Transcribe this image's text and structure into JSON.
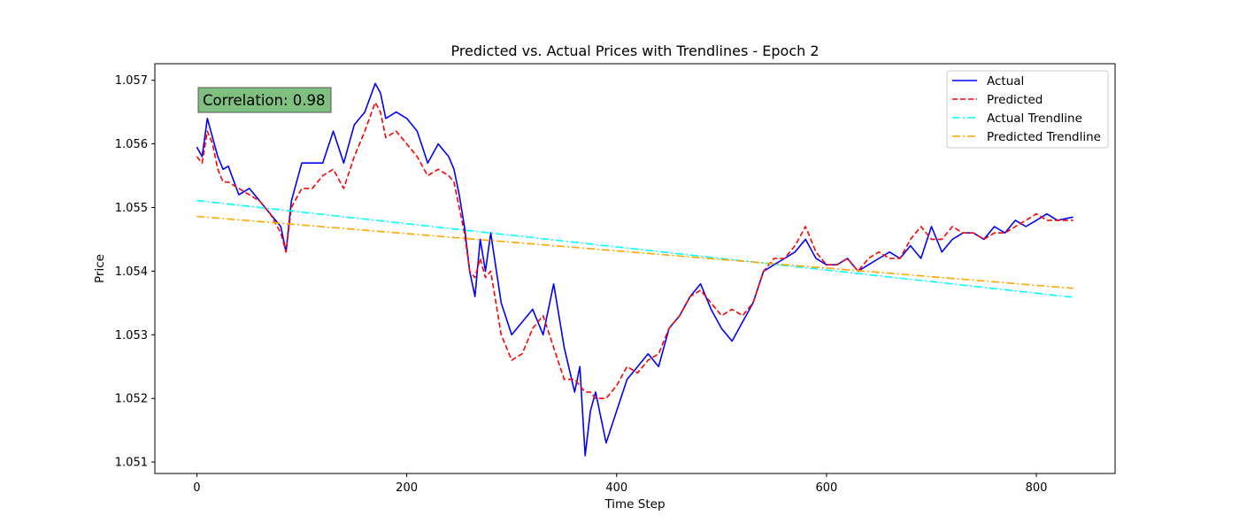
{
  "chart_data": {
    "type": "line",
    "title": "Predicted vs. Actual Prices with Trendlines - Epoch 2",
    "xlabel": "Time Step",
    "ylabel": "Price",
    "xlim": [
      -40,
      875
    ],
    "ylim": [
      1.05082,
      1.05726
    ],
    "xticks": [
      0,
      200,
      400,
      600,
      800
    ],
    "xtick_labels": [
      "0",
      "200",
      "400",
      "600",
      "800"
    ],
    "yticks": [
      1.051,
      1.052,
      1.053,
      1.054,
      1.055,
      1.056,
      1.057
    ],
    "ytick_labels": [
      "1.051",
      "1.052",
      "1.053",
      "1.054",
      "1.055",
      "1.056",
      "1.057"
    ],
    "grid": false,
    "legend_position": "top-right",
    "annotation": {
      "text": "Correlation: 0.98",
      "box_color": "#7fbf7f"
    },
    "series": [
      {
        "name": "Actual",
        "color": "#0000ff",
        "style": "solid",
        "x": [
          0,
          5,
          10,
          15,
          20,
          25,
          30,
          40,
          50,
          60,
          70,
          80,
          85,
          90,
          100,
          110,
          120,
          130,
          140,
          150,
          160,
          170,
          175,
          180,
          190,
          200,
          210,
          220,
          230,
          240,
          245,
          250,
          255,
          260,
          265,
          270,
          275,
          280,
          290,
          300,
          310,
          320,
          330,
          340,
          350,
          360,
          365,
          370,
          375,
          380,
          390,
          400,
          410,
          420,
          430,
          440,
          450,
          460,
          470,
          480,
          490,
          500,
          510,
          520,
          530,
          540,
          550,
          560,
          570,
          580,
          590,
          600,
          610,
          620,
          630,
          640,
          650,
          660,
          670,
          680,
          690,
          700,
          710,
          720,
          730,
          740,
          750,
          760,
          770,
          780,
          790,
          800,
          810,
          820,
          835
        ],
        "values": [
          1.05595,
          1.0558,
          1.0564,
          1.0561,
          1.0558,
          1.0556,
          1.05565,
          1.0552,
          1.0553,
          1.0551,
          1.0549,
          1.0547,
          1.0543,
          1.0551,
          1.0557,
          1.0557,
          1.0557,
          1.0562,
          1.0557,
          1.0563,
          1.0565,
          1.05695,
          1.0568,
          1.0564,
          1.0565,
          1.0564,
          1.0562,
          1.0557,
          1.056,
          1.0558,
          1.0556,
          1.0552,
          1.0547,
          1.054,
          1.0536,
          1.0545,
          1.054,
          1.0546,
          1.0535,
          1.053,
          1.0532,
          1.0534,
          1.053,
          1.0538,
          1.0528,
          1.0521,
          1.0525,
          1.0511,
          1.0518,
          1.0521,
          1.0513,
          1.0518,
          1.0523,
          1.0525,
          1.0527,
          1.0525,
          1.0531,
          1.0533,
          1.0536,
          1.0538,
          1.0534,
          1.0531,
          1.0529,
          1.0532,
          1.0535,
          1.054,
          1.0541,
          1.0542,
          1.0543,
          1.0545,
          1.0542,
          1.0541,
          1.0541,
          1.0542,
          1.054,
          1.0541,
          1.0542,
          1.0543,
          1.0542,
          1.0544,
          1.0542,
          1.0547,
          1.0543,
          1.0545,
          1.0546,
          1.0546,
          1.0545,
          1.0547,
          1.0546,
          1.0548,
          1.0547,
          1.0548,
          1.0549,
          1.0548,
          1.05485
        ]
      },
      {
        "name": "Predicted",
        "color": "#ff0000",
        "style": "dashed",
        "x": [
          0,
          5,
          10,
          15,
          20,
          25,
          30,
          40,
          50,
          60,
          70,
          80,
          85,
          90,
          100,
          110,
          120,
          130,
          140,
          150,
          160,
          170,
          175,
          180,
          190,
          200,
          210,
          220,
          230,
          240,
          245,
          250,
          255,
          260,
          265,
          270,
          275,
          280,
          290,
          300,
          310,
          320,
          330,
          340,
          350,
          360,
          365,
          370,
          375,
          380,
          390,
          400,
          410,
          420,
          430,
          440,
          450,
          460,
          470,
          480,
          490,
          500,
          510,
          520,
          530,
          540,
          550,
          560,
          570,
          580,
          590,
          600,
          610,
          620,
          630,
          640,
          650,
          660,
          670,
          680,
          690,
          700,
          710,
          720,
          730,
          740,
          750,
          760,
          770,
          780,
          790,
          800,
          810,
          820,
          835
        ],
        "values": [
          1.0558,
          1.0557,
          1.0562,
          1.056,
          1.0556,
          1.0554,
          1.0554,
          1.0553,
          1.0552,
          1.0551,
          1.0549,
          1.0546,
          1.0543,
          1.055,
          1.0553,
          1.0553,
          1.0555,
          1.0556,
          1.0553,
          1.0558,
          1.0562,
          1.05665,
          1.0565,
          1.0561,
          1.0562,
          1.056,
          1.0558,
          1.0555,
          1.0556,
          1.0555,
          1.0554,
          1.055,
          1.0546,
          1.054,
          1.0539,
          1.0542,
          1.0539,
          1.054,
          1.053,
          1.0526,
          1.0527,
          1.0531,
          1.0533,
          1.0528,
          1.0523,
          1.0523,
          1.0522,
          1.0521,
          1.0521,
          1.052,
          1.052,
          1.0522,
          1.0525,
          1.0524,
          1.0526,
          1.0527,
          1.0531,
          1.0533,
          1.0536,
          1.0537,
          1.0535,
          1.0533,
          1.0534,
          1.0533,
          1.0535,
          1.054,
          1.0542,
          1.0542,
          1.0544,
          1.0547,
          1.0543,
          1.0541,
          1.0541,
          1.0542,
          1.054,
          1.0542,
          1.0543,
          1.0542,
          1.0542,
          1.0545,
          1.0547,
          1.0545,
          1.0545,
          1.0547,
          1.0546,
          1.0546,
          1.0545,
          1.0546,
          1.0546,
          1.0547,
          1.0548,
          1.0549,
          1.0548,
          1.0548,
          1.0548
        ]
      },
      {
        "name": "Actual Trendline",
        "color": "#00ffff",
        "style": "dashdot",
        "x": [
          0,
          835
        ],
        "values": [
          1.05511,
          1.05359
        ]
      },
      {
        "name": "Predicted Trendline",
        "color": "#ffa500",
        "style": "dashdot",
        "x": [
          0,
          835
        ],
        "values": [
          1.05486,
          1.05373
        ]
      }
    ]
  }
}
